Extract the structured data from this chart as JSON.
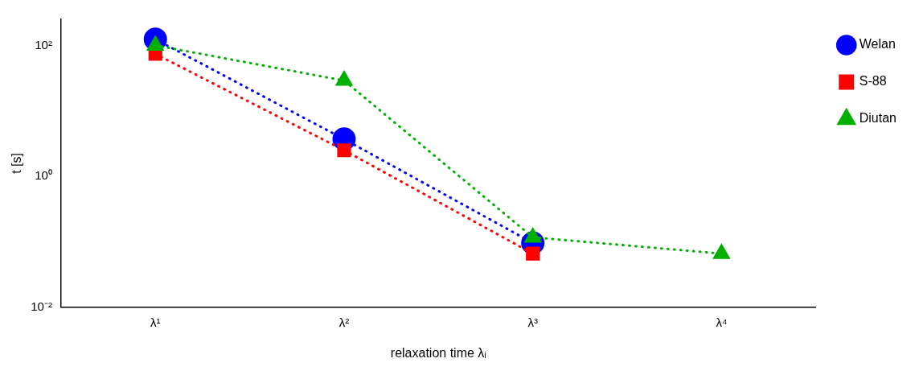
{
  "chart_data": {
    "type": "line",
    "xlabel": "relaxation time λᵢ",
    "ylabel": "t [s]",
    "categories": [
      "λ¹",
      "λ²",
      "λ³",
      "λ⁴"
    ],
    "log": "y",
    "ylim": [
      0.01,
      250
    ],
    "yticks": [
      {
        "value": 0.01,
        "label": "10⁻²"
      },
      {
        "value": 1,
        "label": "10⁰"
      },
      {
        "value": 100,
        "label": "10²"
      }
    ],
    "grid": false,
    "legend": "right",
    "line_style": "dotted",
    "series": [
      {
        "name": "Welan",
        "color": "#0000ff",
        "marker": "circle",
        "values": [
          124,
          3.7,
          0.096,
          null
        ]
      },
      {
        "name": "S-88",
        "color": "#ff0000",
        "marker": "square",
        "values": [
          74,
          2.5,
          0.066,
          null
        ]
      },
      {
        "name": "Diutan",
        "color": "#00b000",
        "marker": "triangle",
        "values": [
          100,
          29,
          0.117,
          0.066
        ]
      }
    ]
  }
}
